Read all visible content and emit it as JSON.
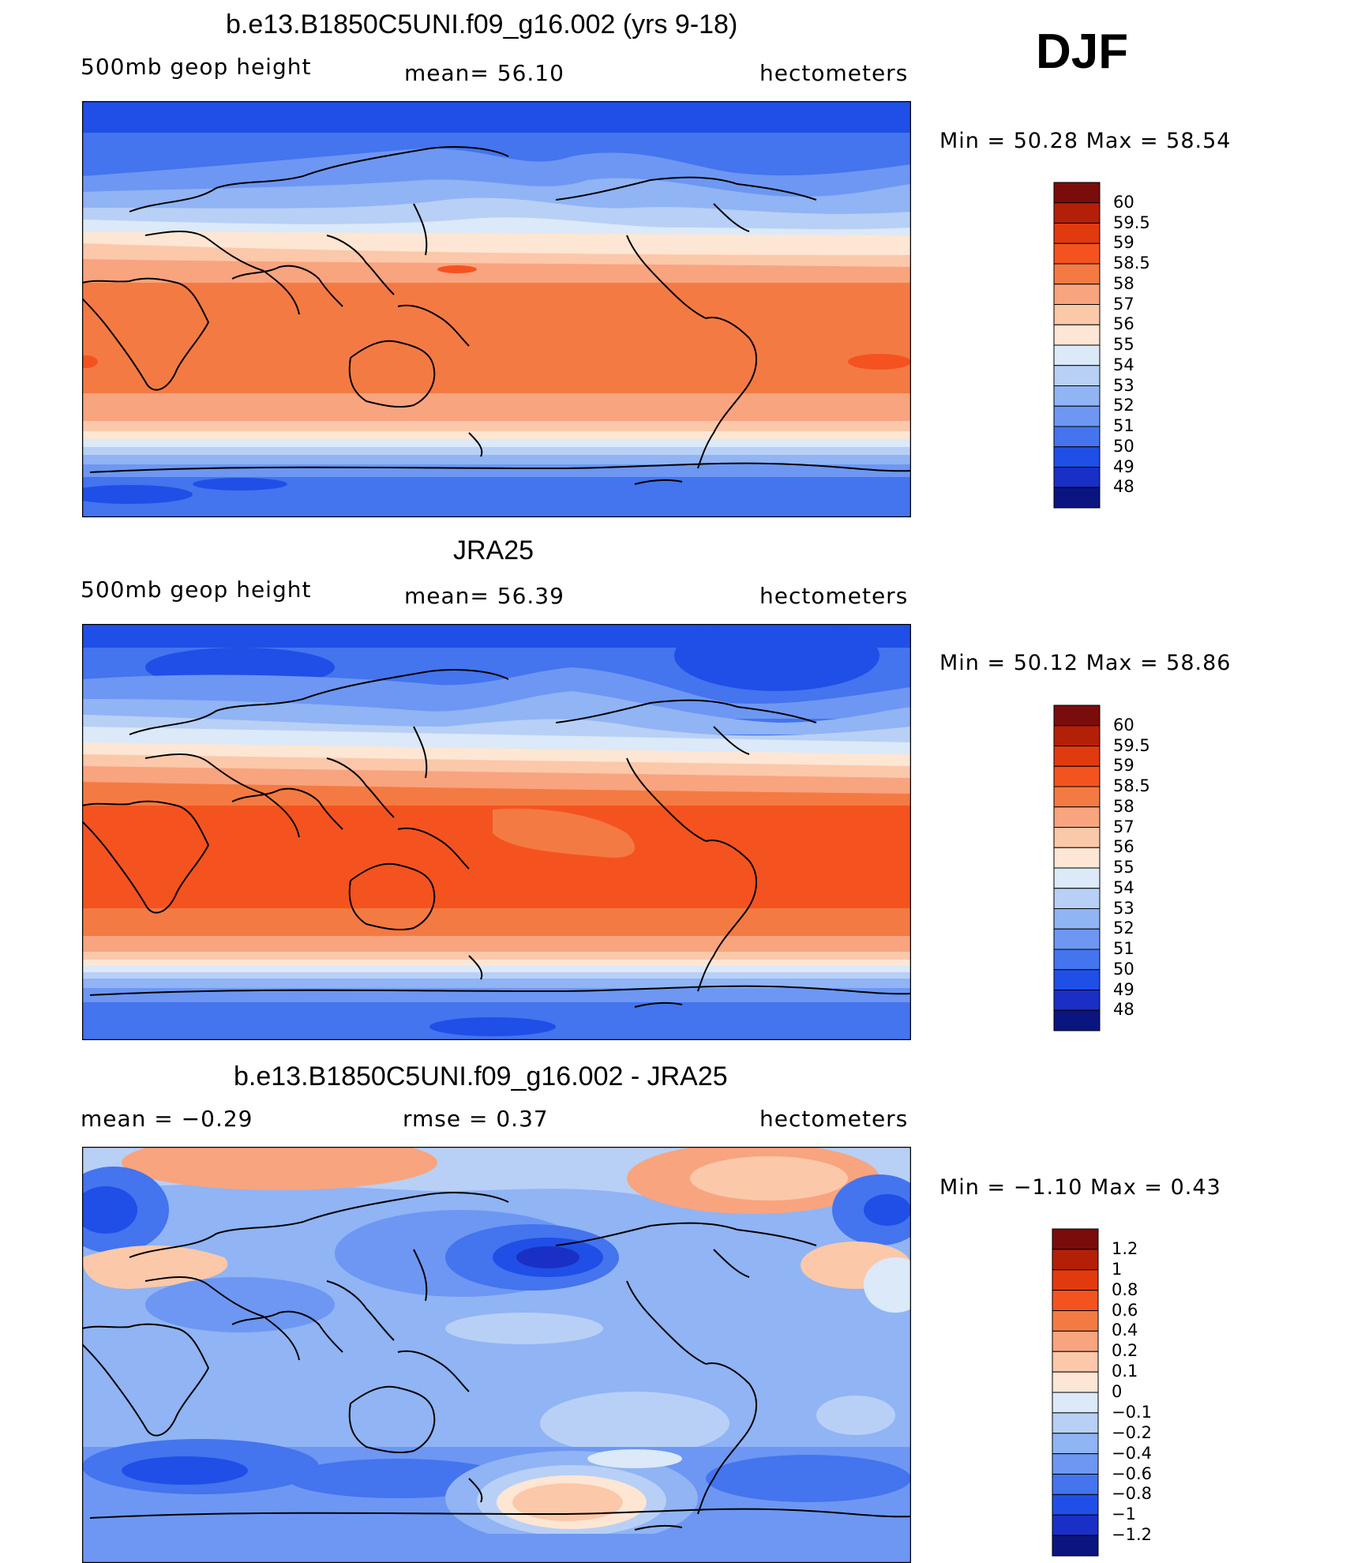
{
  "season": "DJF",
  "panels": [
    {
      "title": "b.e13.B1850C5UNI.f09_g16.002 (yrs 9-18)",
      "left_label": "500mb  geop  height",
      "center_label": "mean=   56.10",
      "right_label": "hectometers",
      "stats": "Min  =    50.28  Max  =    58.54",
      "colorbar_ticks": [
        "60",
        "59.5",
        "59",
        "58.5",
        "58",
        "57",
        "56",
        "55",
        "54",
        "53",
        "52",
        "51",
        "50",
        "49",
        "48"
      ],
      "colorbar_colors": [
        "#7b0c0c",
        "#b41f08",
        "#e23a0f",
        "#f4531f",
        "#f47a43",
        "#f8a47f",
        "#fbc8aa",
        "#fde6d3",
        "#dbe9f8",
        "#b8d0f5",
        "#90b4f4",
        "#6d97f2",
        "#4474ee",
        "#1f4fe6",
        "#1a2fc5",
        "#0b1580"
      ]
    },
    {
      "title": "JRA25",
      "left_label": "500mb  geop  height",
      "center_label": "mean=   56.39",
      "right_label": "hectometers",
      "stats": "Min  =    50.12  Max  =    58.86",
      "colorbar_ticks": [
        "60",
        "59.5",
        "59",
        "58.5",
        "58",
        "57",
        "56",
        "55",
        "54",
        "53",
        "52",
        "51",
        "50",
        "49",
        "48"
      ],
      "colorbar_colors": [
        "#7b0c0c",
        "#b41f08",
        "#e23a0f",
        "#f4531f",
        "#f47a43",
        "#f8a47f",
        "#fbc8aa",
        "#fde6d3",
        "#dbe9f8",
        "#b8d0f5",
        "#90b4f4",
        "#6d97f2",
        "#4474ee",
        "#1f4fe6",
        "#1a2fc5",
        "#0b1580"
      ]
    },
    {
      "title": "b.e13.B1850C5UNI.f09_g16.002 - JRA25",
      "left_label": "mean  =    −0.29",
      "center_label": "rmse  =     0.37",
      "right_label": "hectometers",
      "stats": "Min  =    −1.10  Max  =      0.43",
      "colorbar_ticks": [
        "1.2",
        "1",
        "0.8",
        "0.6",
        "0.4",
        "0.2",
        "0.1",
        "0",
        "−0.1",
        "−0.2",
        "−0.4",
        "−0.6",
        "−0.8",
        "−1",
        "−1.2"
      ],
      "colorbar_colors": [
        "#7b0c0c",
        "#b41f08",
        "#e23a0f",
        "#f4531f",
        "#f47a43",
        "#f8a47f",
        "#fbc8aa",
        "#fde6d3",
        "#dbe9f8",
        "#b8d0f5",
        "#90b4f4",
        "#6d97f2",
        "#4474ee",
        "#1f4fe6",
        "#1a2fc5",
        "#0b1580"
      ]
    }
  ]
}
